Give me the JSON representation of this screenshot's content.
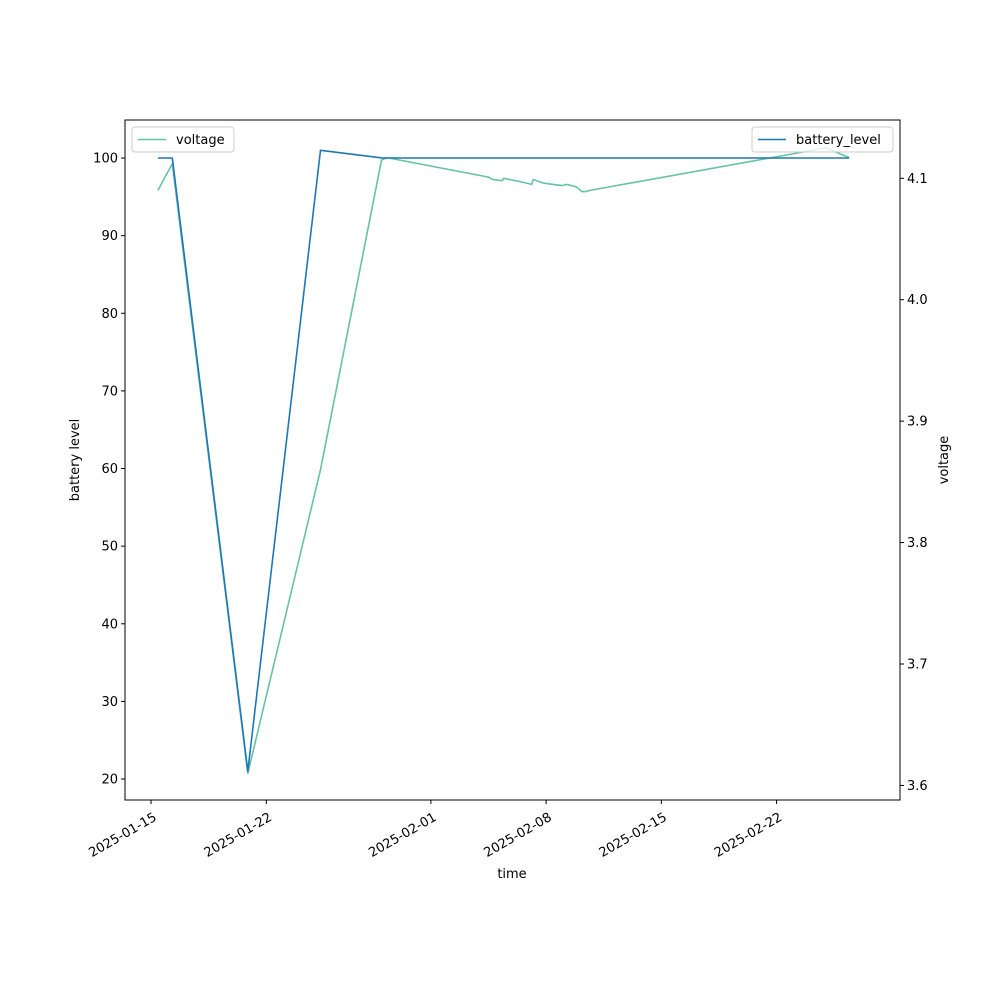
{
  "chart_data": {
    "type": "line",
    "xlabel": "time",
    "ylabel_left": "battery level",
    "ylabel_right": "voltage",
    "grid": false,
    "x_ticks": [
      "2025-01-15",
      "2025-01-22",
      "2025-02-01",
      "2025-02-08",
      "2025-02-15",
      "2025-02-22"
    ],
    "y_left_ticks": [
      20,
      30,
      40,
      50,
      60,
      70,
      80,
      90,
      100
    ],
    "y_right_ticks": [
      "3.6",
      "3.7",
      "3.8",
      "3.9",
      "4.0",
      "4.1"
    ],
    "y_left_range": [
      17.3,
      104.9
    ],
    "y_right_range": [
      3.588,
      4.148
    ],
    "x_range": [
      "2025-01-13T10:00",
      "2025-02-29T12:00"
    ],
    "series": [
      {
        "name": "battery_level",
        "axis": "left",
        "color": "#1f77b4",
        "legend_position": "top-right",
        "points": [
          [
            "2025-01-15T10:00",
            100
          ],
          [
            "2025-01-16T07:00",
            100
          ],
          [
            "2025-01-20T21:00",
            21
          ],
          [
            "2025-01-25T07:00",
            101
          ],
          [
            "2025-01-29T02:00",
            100
          ],
          [
            "2025-02-26T10:00",
            100
          ]
        ]
      },
      {
        "name": "voltage",
        "axis": "right",
        "color": "#66c2a5",
        "legend_position": "top-left",
        "points": [
          [
            "2025-01-15T10:00",
            4.09
          ],
          [
            "2025-01-16T07:00",
            4.112
          ],
          [
            "2025-01-20T21:00",
            3.61
          ],
          [
            "2025-01-25T07:00",
            3.86
          ],
          [
            "2025-01-29T00:00",
            4.115
          ],
          [
            "2025-01-29T08:00",
            4.117
          ],
          [
            "2025-02-04T12:00",
            4.101
          ],
          [
            "2025-02-04T18:00",
            4.099
          ],
          [
            "2025-02-05T08:00",
            4.098
          ],
          [
            "2025-02-05T10:00",
            4.1
          ],
          [
            "2025-02-06T12:00",
            4.097
          ],
          [
            "2025-02-07T03:00",
            4.095
          ],
          [
            "2025-02-07T05:00",
            4.099
          ],
          [
            "2025-02-07T20:00",
            4.096
          ],
          [
            "2025-02-08T10:00",
            4.095
          ],
          [
            "2025-02-09T00:00",
            4.094
          ],
          [
            "2025-02-09T06:00",
            4.095
          ],
          [
            "2025-02-09T20:00",
            4.093
          ],
          [
            "2025-02-10T04:00",
            4.089
          ],
          [
            "2025-02-10T10:00",
            4.089
          ],
          [
            "2025-02-10T16:00",
            4.09
          ],
          [
            "2025-02-25T00:00",
            4.125
          ],
          [
            "2025-02-26T10:00",
            4.117
          ]
        ]
      }
    ]
  }
}
